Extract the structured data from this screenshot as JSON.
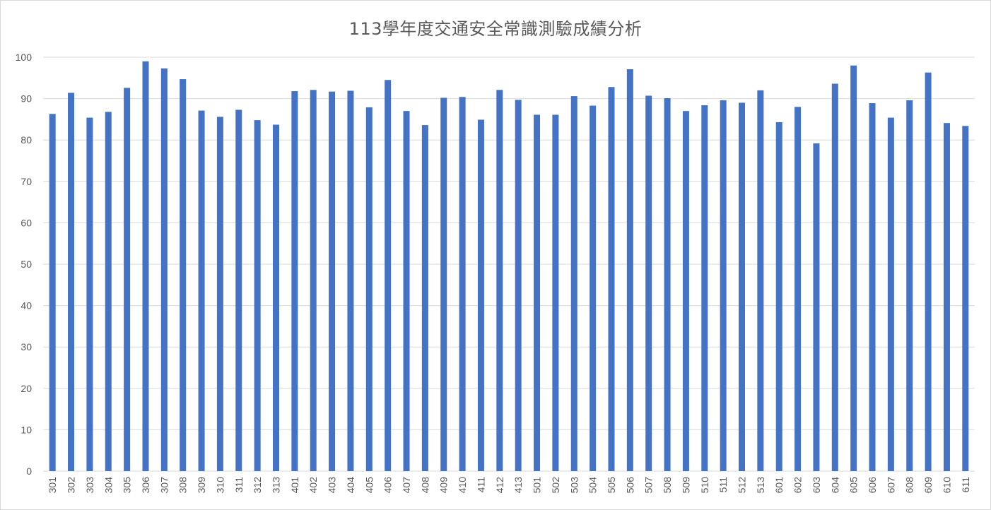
{
  "chart_data": {
    "type": "bar",
    "title": "113學年度交通安全常識測驗成績分析",
    "categories": [
      "301",
      "302",
      "303",
      "304",
      "305",
      "306",
      "307",
      "308",
      "309",
      "310",
      "311",
      "312",
      "313",
      "401",
      "402",
      "403",
      "404",
      "405",
      "406",
      "407",
      "408",
      "409",
      "410",
      "411",
      "412",
      "413",
      "501",
      "502",
      "503",
      "504",
      "505",
      "506",
      "507",
      "508",
      "509",
      "510",
      "511",
      "512",
      "513",
      "601",
      "602",
      "603",
      "604",
      "605",
      "606",
      "607",
      "608",
      "609",
      "610",
      "611"
    ],
    "values": [
      86.3,
      91.4,
      85.4,
      86.8,
      92.6,
      99.0,
      97.3,
      94.7,
      87.1,
      85.6,
      87.3,
      84.8,
      83.7,
      91.8,
      92.1,
      91.7,
      91.9,
      87.9,
      94.5,
      87.0,
      83.6,
      90.2,
      90.4,
      84.9,
      92.1,
      89.7,
      86.1,
      86.1,
      90.6,
      88.3,
      92.8,
      97.1,
      90.7,
      90.1,
      87.0,
      88.4,
      89.6,
      89.0,
      92.0,
      84.3,
      88.0,
      79.2,
      93.6,
      98.0,
      88.9,
      85.4,
      89.6,
      96.3,
      84.1,
      83.4
    ],
    "xlabel": "",
    "ylabel": "",
    "ylim": [
      0,
      100
    ],
    "yticks": [
      "0",
      "10",
      "20",
      "30",
      "40",
      "50",
      "60",
      "70",
      "80",
      "90",
      "100"
    ],
    "grid": true,
    "bar_color": "#4472c4",
    "grid_color": "#d9d9d9",
    "text_color": "#595959"
  }
}
